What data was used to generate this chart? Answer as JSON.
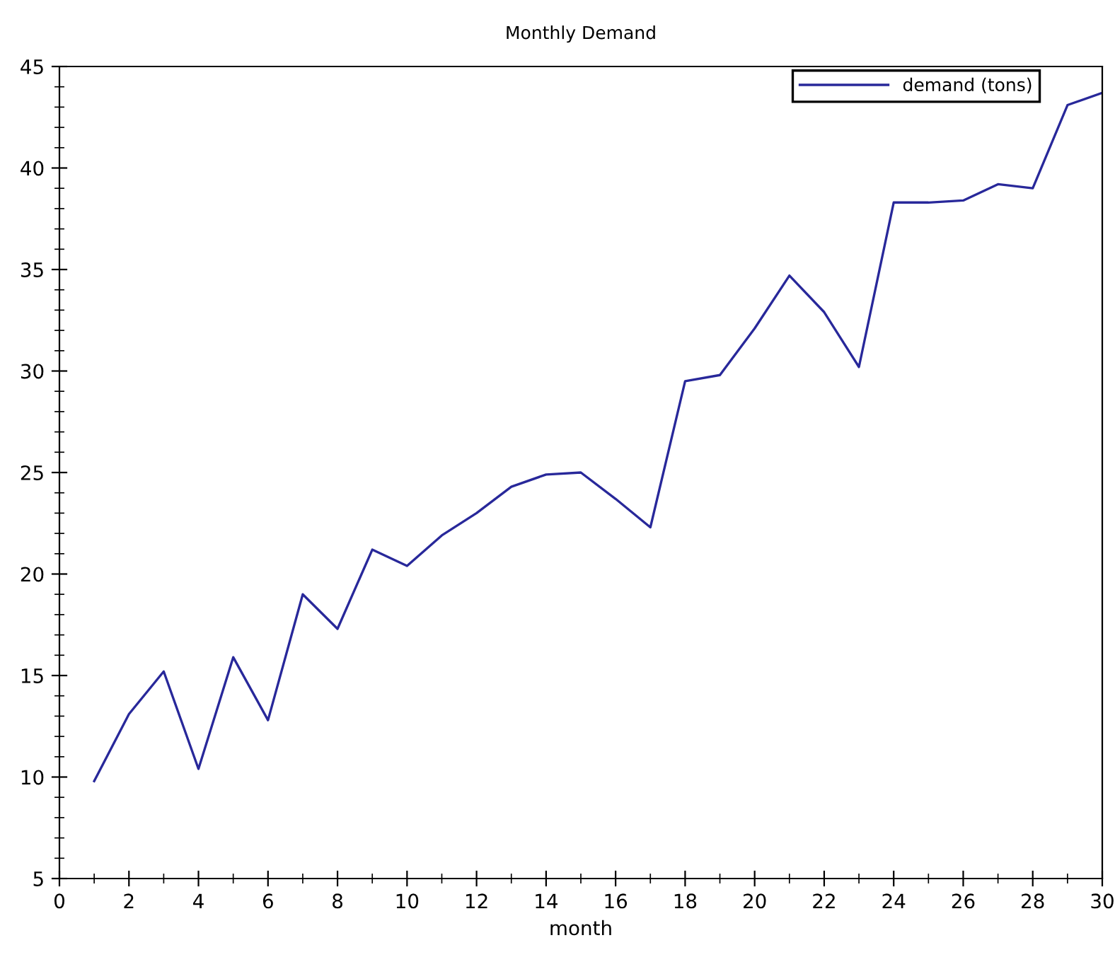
{
  "chart_data": {
    "type": "line",
    "title": "Monthly Demand",
    "xlabel": "month",
    "x": [
      1,
      2,
      3,
      4,
      5,
      6,
      7,
      8,
      9,
      10,
      11,
      12,
      13,
      14,
      15,
      16,
      17,
      18,
      19,
      20,
      21,
      22,
      23,
      24,
      25,
      26,
      27,
      28,
      29,
      30
    ],
    "series": [
      {
        "name": "demand (tons)",
        "color": "#28289a",
        "values": [
          9.8,
          13.1,
          15.2,
          10.4,
          15.9,
          12.8,
          19.0,
          17.3,
          21.2,
          20.4,
          21.9,
          23.0,
          24.3,
          24.9,
          25.0,
          23.7,
          22.3,
          29.5,
          29.8,
          32.1,
          34.7,
          32.9,
          30.2,
          38.3,
          38.3,
          38.4,
          39.2,
          39.0,
          43.1,
          43.7
        ]
      }
    ],
    "xlim": [
      0,
      30
    ],
    "xticks": [
      0,
      2,
      4,
      6,
      8,
      10,
      12,
      14,
      16,
      18,
      20,
      22,
      24,
      26,
      28,
      30
    ],
    "ylim": [
      5,
      45
    ],
    "yticks": [
      5,
      10,
      15,
      20,
      25,
      30,
      35,
      40,
      45
    ],
    "legend": "top right",
    "grid": false,
    "marker": "none",
    "line_style": "solid"
  }
}
